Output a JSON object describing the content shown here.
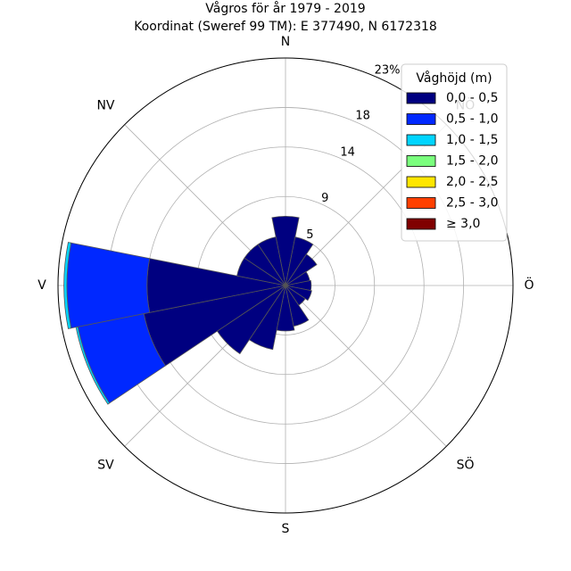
{
  "chart_data": {
    "type": "polar-bar",
    "title": "Vågros för år 1979 - 2019",
    "subtitle": "Koordinat (Sweref 99 TM): E 377490, N 6172318",
    "direction_labels": [
      {
        "angle": 0,
        "label": "N"
      },
      {
        "angle": 45,
        "label": "NÖ"
      },
      {
        "angle": 90,
        "label": "Ö"
      },
      {
        "angle": 135,
        "label": "SÖ"
      },
      {
        "angle": 180,
        "label": "S"
      },
      {
        "angle": 225,
        "label": "SV"
      },
      {
        "angle": 270,
        "label": "V"
      },
      {
        "angle": 315,
        "label": "NV"
      }
    ],
    "radial_ticks": [
      {
        "value": 5,
        "label": "5"
      },
      {
        "value": 9,
        "label": "9"
      },
      {
        "value": 14,
        "label": "14"
      },
      {
        "value": 18,
        "label": "18"
      },
      {
        "value": 23,
        "label": "23%"
      }
    ],
    "r_max": 23,
    "r_ticks_angle_deg": 22.5,
    "legend": {
      "title": "Våghöjd (m)",
      "placement": "top-right",
      "entries": [
        {
          "label": "0,0 - 0,5",
          "color": "#000080"
        },
        {
          "label": "0,5 - 1,0",
          "color": "#0028ff"
        },
        {
          "label": "1,0 - 1,5",
          "color": "#00d5ff"
        },
        {
          "label": "1,5 - 2,0",
          "color": "#7aff7d"
        },
        {
          "label": "2,0 - 2,5",
          "color": "#ffe600"
        },
        {
          "label": "2,5 - 3,0",
          "color": "#ff4000"
        },
        {
          "label": "≥ 3,0",
          "color": "#800000"
        }
      ]
    },
    "sector_width_deg": 22.5,
    "sectors": [
      {
        "direction_deg": 0,
        "values": [
          7.0
        ]
      },
      {
        "direction_deg": 22.5,
        "values": [
          5.0
        ]
      },
      {
        "direction_deg": 45,
        "values": [
          3.8
        ]
      },
      {
        "direction_deg": 67.5,
        "values": [
          2.5
        ]
      },
      {
        "direction_deg": 90,
        "values": [
          2.6
        ]
      },
      {
        "direction_deg": 112.5,
        "values": [
          2.7
        ]
      },
      {
        "direction_deg": 135,
        "values": [
          2.4
        ]
      },
      {
        "direction_deg": 157.5,
        "values": [
          4.2
        ]
      },
      {
        "direction_deg": 180,
        "values": [
          4.6
        ]
      },
      {
        "direction_deg": 202.5,
        "values": [
          6.6
        ]
      },
      {
        "direction_deg": 225,
        "values": [
          8.3
        ]
      },
      {
        "direction_deg": 247.5,
        "values": [
          14.6,
          6.8,
          0.2
        ]
      },
      {
        "direction_deg": 270,
        "values": [
          14.0,
          8.1,
          0.3
        ]
      },
      {
        "direction_deg": 292.5,
        "values": [
          5.0
        ]
      },
      {
        "direction_deg": 315,
        "values": [
          5.0
        ]
      },
      {
        "direction_deg": 337.5,
        "values": [
          5.0
        ]
      }
    ]
  }
}
